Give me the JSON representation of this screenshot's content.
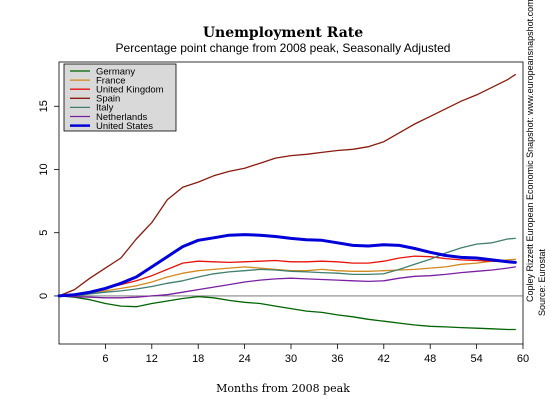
{
  "chart_data": {
    "type": "line",
    "title": "Unemployment Rate",
    "subtitle": "Percentage point change from 2008 peak, Seasonally Adjusted",
    "xlabel": "Months from 2008 peak",
    "ylabel": "",
    "xlim": [
      0,
      60
    ],
    "ylim": [
      -3.8,
      18.5
    ],
    "xticks": [
      6,
      12,
      18,
      24,
      30,
      36,
      42,
      48,
      54,
      60
    ],
    "yticks": [
      0,
      5,
      10,
      15
    ],
    "zero_line": true,
    "legend_position": "top-left",
    "side_notes": [
      "Copley Rizzett European Economic Snapshot: www.europeansnapshot.com",
      "Source: Eurostat"
    ],
    "series": [
      {
        "name": "Germany",
        "color": "#006400",
        "width": 1.3,
        "points": [
          [
            0,
            0
          ],
          [
            2,
            -0.1
          ],
          [
            4,
            -0.3
          ],
          [
            6,
            -0.6
          ],
          [
            8,
            -0.8
          ],
          [
            10,
            -0.85
          ],
          [
            12,
            -0.6
          ],
          [
            14,
            -0.4
          ],
          [
            16,
            -0.2
          ],
          [
            18,
            -0.05
          ],
          [
            20,
            -0.15
          ],
          [
            22,
            -0.35
          ],
          [
            24,
            -0.5
          ],
          [
            26,
            -0.6
          ],
          [
            28,
            -0.8
          ],
          [
            30,
            -1.0
          ],
          [
            32,
            -1.2
          ],
          [
            34,
            -1.3
          ],
          [
            36,
            -1.5
          ],
          [
            38,
            -1.65
          ],
          [
            40,
            -1.85
          ],
          [
            42,
            -2.0
          ],
          [
            44,
            -2.15
          ],
          [
            46,
            -2.3
          ],
          [
            48,
            -2.4
          ],
          [
            50,
            -2.45
          ],
          [
            52,
            -2.5
          ],
          [
            54,
            -2.55
          ],
          [
            56,
            -2.6
          ],
          [
            58,
            -2.65
          ],
          [
            59,
            -2.65
          ]
        ]
      },
      {
        "name": "France",
        "color": "#D2891E",
        "width": 1.3,
        "points": [
          [
            0,
            0
          ],
          [
            2,
            0.05
          ],
          [
            4,
            0.2
          ],
          [
            6,
            0.4
          ],
          [
            8,
            0.6
          ],
          [
            10,
            0.8
          ],
          [
            12,
            1.1
          ],
          [
            14,
            1.5
          ],
          [
            16,
            1.8
          ],
          [
            18,
            2.0
          ],
          [
            20,
            2.1
          ],
          [
            22,
            2.2
          ],
          [
            24,
            2.3
          ],
          [
            26,
            2.2
          ],
          [
            28,
            2.1
          ],
          [
            30,
            2.0
          ],
          [
            32,
            2.0
          ],
          [
            34,
            2.1
          ],
          [
            36,
            2.0
          ],
          [
            38,
            1.95
          ],
          [
            40,
            1.95
          ],
          [
            42,
            2.0
          ],
          [
            44,
            2.05
          ],
          [
            46,
            2.1
          ],
          [
            48,
            2.2
          ],
          [
            50,
            2.3
          ],
          [
            52,
            2.5
          ],
          [
            54,
            2.6
          ],
          [
            56,
            2.75
          ],
          [
            58,
            2.85
          ],
          [
            59,
            2.9
          ]
        ]
      },
      {
        "name": "United Kingdom",
        "color": "#E8120C",
        "width": 1.3,
        "points": [
          [
            0,
            0
          ],
          [
            2,
            0.1
          ],
          [
            4,
            0.3
          ],
          [
            6,
            0.6
          ],
          [
            8,
            0.9
          ],
          [
            10,
            1.2
          ],
          [
            12,
            1.6
          ],
          [
            14,
            2.1
          ],
          [
            16,
            2.6
          ],
          [
            18,
            2.75
          ],
          [
            20,
            2.7
          ],
          [
            22,
            2.65
          ],
          [
            24,
            2.7
          ],
          [
            26,
            2.75
          ],
          [
            28,
            2.8
          ],
          [
            30,
            2.7
          ],
          [
            32,
            2.7
          ],
          [
            34,
            2.75
          ],
          [
            36,
            2.7
          ],
          [
            38,
            2.6
          ],
          [
            40,
            2.6
          ],
          [
            42,
            2.75
          ],
          [
            44,
            3.0
          ],
          [
            46,
            3.15
          ],
          [
            48,
            3.1
          ],
          [
            50,
            2.95
          ],
          [
            52,
            2.85
          ],
          [
            54,
            2.8
          ],
          [
            56,
            2.75
          ],
          [
            58,
            2.7
          ],
          [
            59,
            2.7
          ]
        ]
      },
      {
        "name": "Spain",
        "color": "#8B1A0E",
        "width": 1.3,
        "points": [
          [
            0,
            0
          ],
          [
            2,
            0.5
          ],
          [
            4,
            1.4
          ],
          [
            6,
            2.2
          ],
          [
            8,
            3.0
          ],
          [
            10,
            4.5
          ],
          [
            12,
            5.8
          ],
          [
            14,
            7.6
          ],
          [
            16,
            8.6
          ],
          [
            18,
            9.0
          ],
          [
            20,
            9.5
          ],
          [
            22,
            9.85
          ],
          [
            24,
            10.1
          ],
          [
            26,
            10.5
          ],
          [
            28,
            10.9
          ],
          [
            30,
            11.1
          ],
          [
            32,
            11.2
          ],
          [
            34,
            11.35
          ],
          [
            36,
            11.5
          ],
          [
            38,
            11.6
          ],
          [
            40,
            11.8
          ],
          [
            42,
            12.2
          ],
          [
            44,
            12.9
          ],
          [
            46,
            13.6
          ],
          [
            48,
            14.2
          ],
          [
            50,
            14.8
          ],
          [
            52,
            15.4
          ],
          [
            54,
            15.9
          ],
          [
            56,
            16.5
          ],
          [
            58,
            17.1
          ],
          [
            59,
            17.5
          ]
        ]
      },
      {
        "name": "Italy",
        "color": "#3F7F6F",
        "width": 1.3,
        "points": [
          [
            0,
            0
          ],
          [
            2,
            0.0
          ],
          [
            4,
            0.15
          ],
          [
            6,
            0.3
          ],
          [
            8,
            0.4
          ],
          [
            10,
            0.55
          ],
          [
            12,
            0.75
          ],
          [
            14,
            1.0
          ],
          [
            16,
            1.2
          ],
          [
            18,
            1.5
          ],
          [
            20,
            1.75
          ],
          [
            22,
            1.9
          ],
          [
            24,
            2.0
          ],
          [
            26,
            2.1
          ],
          [
            28,
            2.05
          ],
          [
            30,
            1.95
          ],
          [
            32,
            1.9
          ],
          [
            34,
            1.85
          ],
          [
            36,
            1.8
          ],
          [
            38,
            1.7
          ],
          [
            40,
            1.7
          ],
          [
            42,
            1.75
          ],
          [
            44,
            2.1
          ],
          [
            46,
            2.5
          ],
          [
            48,
            2.9
          ],
          [
            50,
            3.4
          ],
          [
            52,
            3.8
          ],
          [
            54,
            4.1
          ],
          [
            56,
            4.2
          ],
          [
            58,
            4.5
          ],
          [
            59,
            4.55
          ]
        ]
      },
      {
        "name": "Netherlands",
        "color": "#7A1FA2",
        "width": 1.3,
        "points": [
          [
            0,
            0
          ],
          [
            2,
            -0.05
          ],
          [
            4,
            -0.1
          ],
          [
            6,
            -0.15
          ],
          [
            8,
            -0.15
          ],
          [
            10,
            -0.1
          ],
          [
            12,
            0.0
          ],
          [
            14,
            0.1
          ],
          [
            16,
            0.3
          ],
          [
            18,
            0.5
          ],
          [
            20,
            0.7
          ],
          [
            22,
            0.9
          ],
          [
            24,
            1.1
          ],
          [
            26,
            1.25
          ],
          [
            28,
            1.35
          ],
          [
            30,
            1.4
          ],
          [
            32,
            1.35
          ],
          [
            34,
            1.3
          ],
          [
            36,
            1.25
          ],
          [
            38,
            1.2
          ],
          [
            40,
            1.15
          ],
          [
            42,
            1.2
          ],
          [
            44,
            1.4
          ],
          [
            46,
            1.55
          ],
          [
            48,
            1.6
          ],
          [
            50,
            1.7
          ],
          [
            52,
            1.85
          ],
          [
            54,
            1.95
          ],
          [
            56,
            2.05
          ],
          [
            58,
            2.2
          ],
          [
            59,
            2.3
          ]
        ]
      },
      {
        "name": "United States",
        "color": "#0000D8",
        "width": 3,
        "points": [
          [
            0,
            0
          ],
          [
            2,
            0.1
          ],
          [
            4,
            0.3
          ],
          [
            6,
            0.6
          ],
          [
            8,
            1.0
          ],
          [
            10,
            1.5
          ],
          [
            12,
            2.3
          ],
          [
            14,
            3.1
          ],
          [
            16,
            3.9
          ],
          [
            18,
            4.4
          ],
          [
            20,
            4.6
          ],
          [
            22,
            4.8
          ],
          [
            24,
            4.85
          ],
          [
            26,
            4.8
          ],
          [
            28,
            4.7
          ],
          [
            30,
            4.55
          ],
          [
            32,
            4.45
          ],
          [
            34,
            4.4
          ],
          [
            36,
            4.2
          ],
          [
            38,
            4.0
          ],
          [
            40,
            3.95
          ],
          [
            42,
            4.05
          ],
          [
            44,
            4.0
          ],
          [
            46,
            3.75
          ],
          [
            48,
            3.45
          ],
          [
            50,
            3.2
          ],
          [
            52,
            3.05
          ],
          [
            54,
            3.0
          ],
          [
            56,
            2.85
          ],
          [
            58,
            2.7
          ],
          [
            59,
            2.65
          ]
        ]
      }
    ]
  }
}
